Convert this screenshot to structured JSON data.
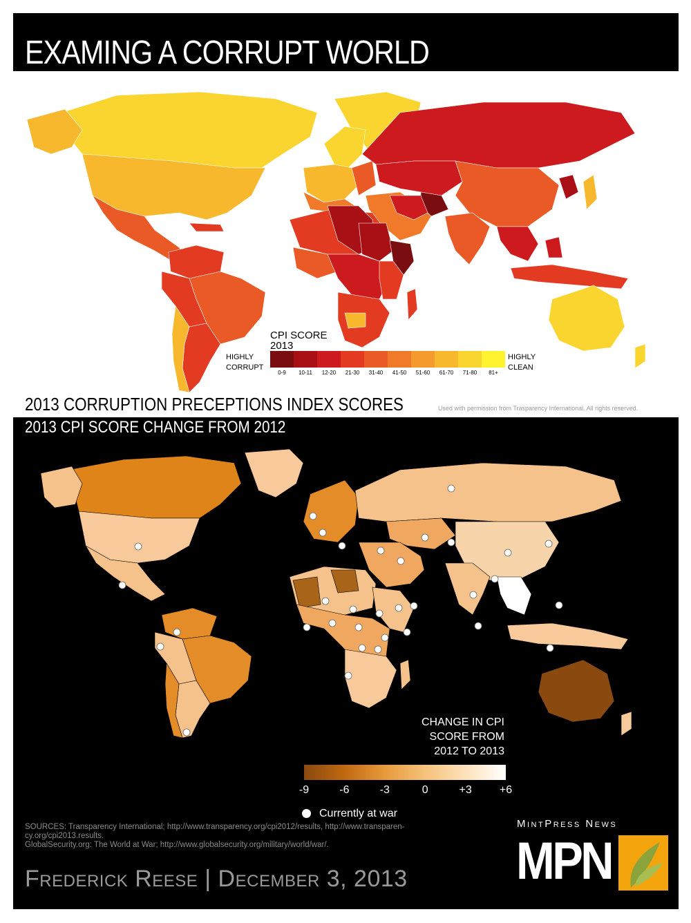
{
  "title": "EXAMING A CORRUPT WORLD",
  "map1": {
    "title": "2013 CORRUPTION PRECEPTIONS INDEX SCORES",
    "credit": "Used with permission from Trasparency International. All rights reserved.",
    "legend": {
      "title_line1": "CPI SCORE",
      "title_line2": "2013",
      "left_line1": "HIGHLY",
      "left_line2": "CORRUPT",
      "right_line1": "HIGHLY",
      "right_line2": "CLEAN",
      "bins": [
        "0-9",
        "10-11",
        "12-20",
        "21-30",
        "31-40",
        "41-50",
        "51-60",
        "61-70",
        "71-80",
        "81+"
      ],
      "colors": [
        "#7a0d0f",
        "#a81016",
        "#cc1a1e",
        "#e33a22",
        "#ea5a26",
        "#f07a2a",
        "#f59a2c",
        "#f8b82e",
        "#fbd52f",
        "#fff22e"
      ]
    }
  },
  "map2": {
    "title": "2013 CPI SCORE CHANGE FROM 2012",
    "legend": {
      "title_line1": "CHANGE IN CPI",
      "title_line2": "SCORE FROM",
      "title_line3": "2012 TO 2013",
      "ticks": [
        "-9",
        "-6",
        "-3",
        "0",
        "+3",
        "+6"
      ],
      "war_label": "Currently at war"
    }
  },
  "sources": {
    "line1": "SOURCES: Transparency International; http://www.transparency.org/cpi2012/results, http://www.transparen-",
    "line2": "cy.org/cpi2013.results.",
    "line3": "GlobalSecurity.org: The World at War; http://www.globalsecurity.org/military/world/war/."
  },
  "byline": "Frederick Reese | December 3, 2013",
  "brand": {
    "name": "MintPress News",
    "logo_text": "MPN"
  }
}
